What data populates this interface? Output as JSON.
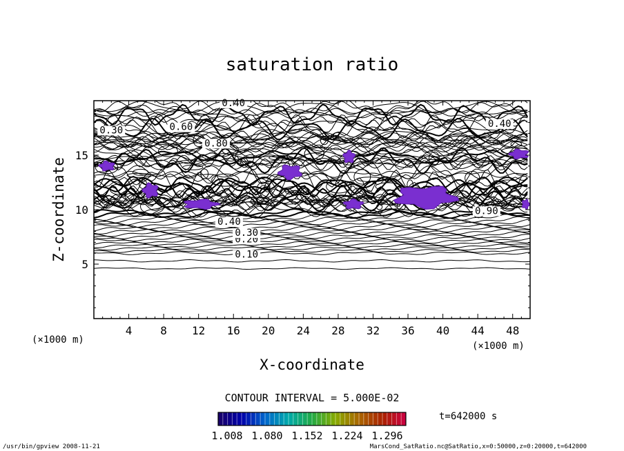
{
  "chart_data": {
    "type": "contour",
    "title": "saturation ratio",
    "xlabel": "X-coordinate",
    "ylabel": "Z-coordinate",
    "x_unit": "(×1000 m)",
    "y_unit": "(×1000 m)",
    "xlim": [
      0,
      50
    ],
    "ylim": [
      0,
      20
    ],
    "x_ticks": [
      4,
      8,
      12,
      16,
      20,
      24,
      28,
      32,
      36,
      40,
      44,
      48
    ],
    "y_ticks": [
      5,
      10,
      15
    ],
    "contour_interval_text": "CONTOUR INTERVAL = 5.000E-02",
    "contour_interval": 0.05,
    "contour_labels": [
      {
        "text": "0.10",
        "x": 17.5,
        "z": 5.6
      },
      {
        "text": "0.20",
        "x": 17.5,
        "z": 7.0
      },
      {
        "text": "0.30",
        "x": 17.5,
        "z": 7.6
      },
      {
        "text": "0.40",
        "x": 15.5,
        "z": 8.6
      },
      {
        "text": "0.30",
        "x": 2.0,
        "z": 17.0
      },
      {
        "text": "0.40",
        "x": 46.5,
        "z": 17.6
      },
      {
        "text": "0.40",
        "x": 16.0,
        "z": 19.5
      },
      {
        "text": "0.60",
        "x": 10.0,
        "z": 17.3
      },
      {
        "text": "0.80",
        "x": 14.0,
        "z": 15.8
      },
      {
        "text": "0.90",
        "x": 45.0,
        "z": 9.6
      }
    ],
    "supersaturation_regions": [
      {
        "x": [
          0.5,
          2.5
        ],
        "z": [
          13.5,
          14.5
        ]
      },
      {
        "x": [
          5.5,
          7.5
        ],
        "z": [
          11.0,
          12.5
        ]
      },
      {
        "x": [
          10.0,
          14.5
        ],
        "z": [
          10.0,
          11.0
        ]
      },
      {
        "x": [
          21.0,
          24.0
        ],
        "z": [
          12.7,
          14.2
        ]
      },
      {
        "x": [
          28.5,
          30.0
        ],
        "z": [
          14.2,
          15.5
        ]
      },
      {
        "x": [
          28.5,
          31.0
        ],
        "z": [
          10.0,
          11.0
        ]
      },
      {
        "x": [
          34.0,
          42.0
        ],
        "z": [
          10.0,
          12.3
        ]
      },
      {
        "x": [
          47.5,
          50.0
        ],
        "z": [
          14.6,
          15.6
        ]
      },
      {
        "x": [
          49.0,
          50.0
        ],
        "z": [
          10.0,
          11.0
        ]
      }
    ],
    "colorbar": {
      "ticks": [
        "1.008",
        "1.080",
        "1.152",
        "1.224",
        "1.296"
      ],
      "colors": [
        "#1a0066",
        "#0000aa",
        "#0066cc",
        "#00aaaa",
        "#22aa44",
        "#88aa00",
        "#aa6600",
        "#aa2200",
        "#cc0044"
      ]
    },
    "time_label": "t=642000 s",
    "footer_left": "/usr/bin/gpview  2008-11-21",
    "footer_right": "MarsCond_SatRatio.nc@SatRatio,x=0:50000,z=0:20000,t=642000"
  }
}
